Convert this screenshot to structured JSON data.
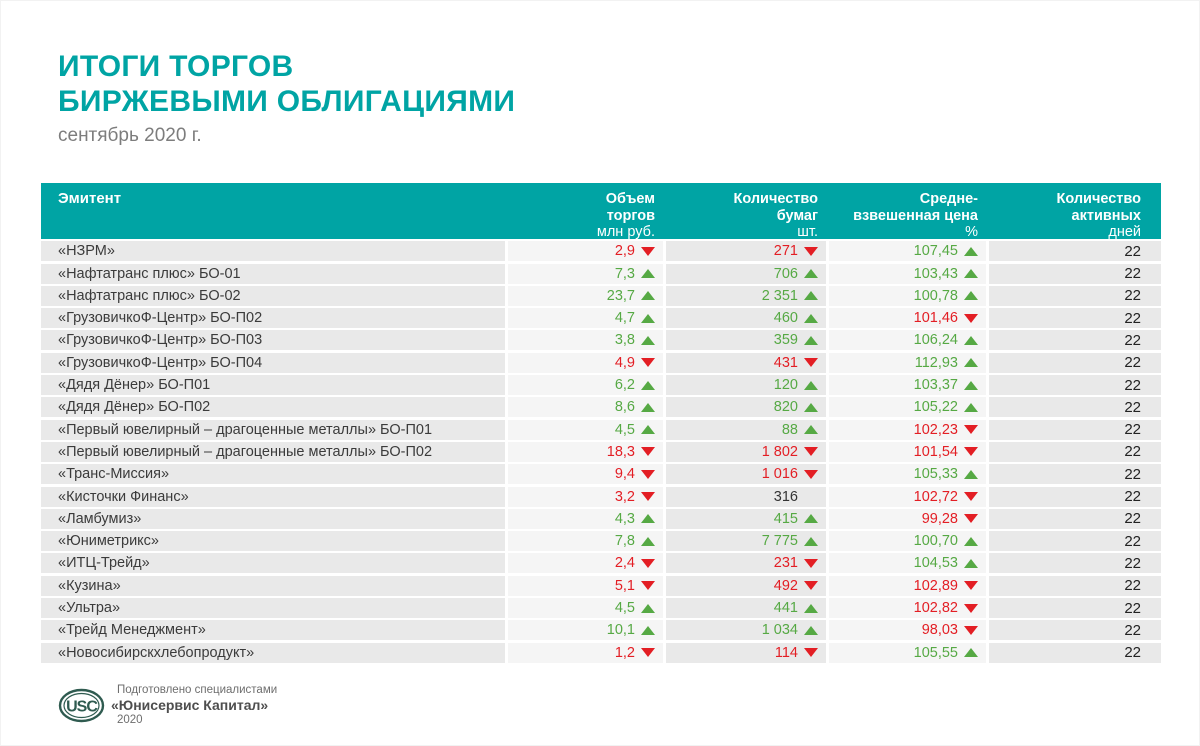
{
  "title_line1": "ИТОГИ ТОРГОВ",
  "title_line2": "БИРЖЕВЫМИ ОБЛИГАЦИЯМИ",
  "subtitle": "сентябрь 2020 г.",
  "colors": {
    "accent_teal": "#00a4a4",
    "up_green": "#56a944",
    "down_red": "#e31e24",
    "logo_green": "#2f5b50",
    "row_shade_dark": "#e9e9e9",
    "row_shade_light": "#f5f5f5"
  },
  "table": {
    "columns": [
      {
        "id": "issuer",
        "label": "Эмитент",
        "unit": "",
        "shade": "dark"
      },
      {
        "id": "volume",
        "label": "Объем\nторгов",
        "unit": "млн руб.",
        "shade": "light"
      },
      {
        "id": "quantity",
        "label": "Количество\nбумаг",
        "unit": "шт.",
        "shade": "dark"
      },
      {
        "id": "price",
        "label": "Средне-\nвзвешенная цена",
        "unit": "%",
        "shade": "light"
      },
      {
        "id": "days",
        "label": "Количество\nактивных",
        "unit": "дней",
        "shade": "dark"
      }
    ],
    "rows": [
      {
        "issuer": "«НЗРМ»",
        "volume": "2,9",
        "volume_trend": "down",
        "quantity": "271",
        "quantity_trend": "down",
        "price": "107,45",
        "price_trend": "up",
        "days": "22"
      },
      {
        "issuer": "«Нафтатранс плюс» БО-01",
        "volume": "7,3",
        "volume_trend": "up",
        "quantity": "706",
        "quantity_trend": "up",
        "price": "103,43",
        "price_trend": "up",
        "days": "22"
      },
      {
        "issuer": "«Нафтатранс плюс» БО-02",
        "volume": "23,7",
        "volume_trend": "up",
        "quantity": "2 351",
        "quantity_trend": "up",
        "price": "100,78",
        "price_trend": "up",
        "days": "22"
      },
      {
        "issuer": "«ГрузовичкоФ-Центр» БО-П02",
        "volume": "4,7",
        "volume_trend": "up",
        "quantity": "460",
        "quantity_trend": "up",
        "price": "101,46",
        "price_trend": "down",
        "days": "22"
      },
      {
        "issuer": "«ГрузовичкоФ-Центр» БО-П03",
        "volume": "3,8",
        "volume_trend": "up",
        "quantity": "359",
        "quantity_trend": "up",
        "price": "106,24",
        "price_trend": "up",
        "days": "22"
      },
      {
        "issuer": "«ГрузовичкоФ-Центр» БО-П04",
        "volume": "4,9",
        "volume_trend": "down",
        "quantity": "431",
        "quantity_trend": "down",
        "price": "112,93",
        "price_trend": "up",
        "days": "22"
      },
      {
        "issuer": "«Дядя Дёнер» БО-П01",
        "volume": "6,2",
        "volume_trend": "up",
        "quantity": "120",
        "quantity_trend": "up",
        "price": "103,37",
        "price_trend": "up",
        "days": "22"
      },
      {
        "issuer": "«Дядя Дёнер» БО-П02",
        "volume": "8,6",
        "volume_trend": "up",
        "quantity": "820",
        "quantity_trend": "up",
        "price": "105,22",
        "price_trend": "up",
        "days": "22"
      },
      {
        "issuer": "«Первый ювелирный – драгоценные металлы» БО-П01",
        "volume": "4,5",
        "volume_trend": "up",
        "quantity": "88",
        "quantity_trend": "up",
        "price": "102,23",
        "price_trend": "down",
        "days": "22"
      },
      {
        "issuer": "«Первый ювелирный – драгоценные металлы» БО-П02",
        "volume": "18,3",
        "volume_trend": "down",
        "quantity": "1 802",
        "quantity_trend": "down",
        "price": "101,54",
        "price_trend": "down",
        "days": "22"
      },
      {
        "issuer": "«Транс-Миссия»",
        "volume": "9,4",
        "volume_trend": "down",
        "quantity": "1 016",
        "quantity_trend": "down",
        "price": "105,33",
        "price_trend": "up",
        "days": "22"
      },
      {
        "issuer": "«Кисточки Финанс»",
        "volume": "3,2",
        "volume_trend": "down",
        "quantity": "316",
        "quantity_trend": "none",
        "price": "102,72",
        "price_trend": "down",
        "days": "22"
      },
      {
        "issuer": "«Ламбумиз»",
        "volume": "4,3",
        "volume_trend": "up",
        "quantity": "415",
        "quantity_trend": "up",
        "price": "99,28",
        "price_trend": "down",
        "days": "22"
      },
      {
        "issuer": "«Юниметрикс»",
        "volume": "7,8",
        "volume_trend": "up",
        "quantity": "7 775",
        "quantity_trend": "up",
        "price": "100,70",
        "price_trend": "up",
        "days": "22"
      },
      {
        "issuer": "«ИТЦ-Трейд»",
        "volume": "2,4",
        "volume_trend": "down",
        "quantity": "231",
        "quantity_trend": "down",
        "price": "104,53",
        "price_trend": "up",
        "days": "22"
      },
      {
        "issuer": "«Кузина»",
        "volume": "5,1",
        "volume_trend": "down",
        "quantity": "492",
        "quantity_trend": "down",
        "price": "102,89",
        "price_trend": "down",
        "days": "22"
      },
      {
        "issuer": "«Ультра»",
        "volume": "4,5",
        "volume_trend": "up",
        "quantity": "441",
        "quantity_trend": "up",
        "price": "102,82",
        "price_trend": "down",
        "days": "22"
      },
      {
        "issuer": "«Трейд Менеджмент»",
        "volume": "10,1",
        "volume_trend": "up",
        "quantity": "1 034",
        "quantity_trend": "up",
        "price": "98,03",
        "price_trend": "down",
        "days": "22"
      },
      {
        "issuer": "«Новосибирскхлебопродукт»",
        "volume": "1,2",
        "volume_trend": "down",
        "quantity": "114",
        "quantity_trend": "down",
        "price": "105,55",
        "price_trend": "up",
        "days": "22"
      }
    ]
  },
  "footer": {
    "logo_text": "USC",
    "line1": "Подготовлено специалистами",
    "line2": "«Юнисервис Капитал»",
    "line3": "2020"
  }
}
